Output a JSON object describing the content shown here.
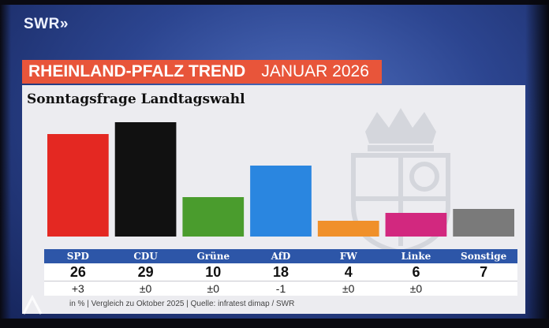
{
  "logo": "SWR",
  "header": {
    "title": "RHEINLAND-PFALZ TREND",
    "period": "JANUAR 2026"
  },
  "chart_subtitle": "Sonntagsfrage Landtagswahl",
  "footer": "in % | Vergleich zu Oktober 2025 | Quelle: infratest dimap / SWR",
  "chart_data": {
    "type": "bar",
    "title": "Sonntagsfrage Landtagswahl",
    "categories": [
      "SPD",
      "CDU",
      "Grüne",
      "AfD",
      "FW",
      "Linke",
      "Sonstige"
    ],
    "values": [
      26,
      29,
      10,
      18,
      4,
      6,
      7
    ],
    "values_text": [
      "26",
      "29",
      "10",
      "18",
      "4",
      "6",
      "7"
    ],
    "changes": [
      "+3",
      "±0",
      "±0",
      "-1",
      "±0",
      "±0",
      ""
    ],
    "colors": [
      "#e42822",
      "#111111",
      "#4a9c2d",
      "#2a86e0",
      "#f0902a",
      "#d2287f",
      "#7a7a7a"
    ],
    "ylim": [
      0,
      30
    ],
    "unit": "%",
    "comparison": "Oktober 2025",
    "grid": false,
    "legend": "none"
  }
}
